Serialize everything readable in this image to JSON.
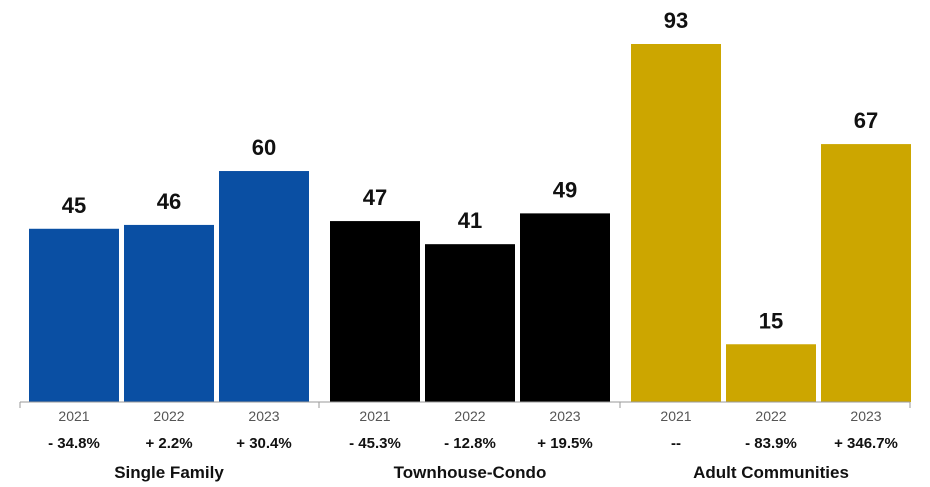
{
  "chart_data": {
    "type": "bar",
    "title": "",
    "xlabel": "",
    "ylabel": "",
    "ylim": [
      0,
      93
    ],
    "grid": false,
    "legend": "none",
    "groups": [
      {
        "name": "Single Family",
        "color": "#0a4fa3",
        "bars": [
          {
            "year": "2021",
            "value": 45,
            "label": "45",
            "change": "- 34.8%"
          },
          {
            "year": "2022",
            "value": 46,
            "label": "46",
            "change": "+ 2.2%"
          },
          {
            "year": "2023",
            "value": 60,
            "label": "60",
            "change": "+ 30.4%"
          }
        ]
      },
      {
        "name": "Townhouse-Condo",
        "color": "#000000",
        "bars": [
          {
            "year": "2021",
            "value": 47,
            "label": "47",
            "change": "- 45.3%"
          },
          {
            "year": "2022",
            "value": 41,
            "label": "41",
            "change": "- 12.8%"
          },
          {
            "year": "2023",
            "value": 49,
            "label": "49",
            "change": "+ 19.5%"
          }
        ]
      },
      {
        "name": "Adult Communities",
        "color": "#cca600",
        "bars": [
          {
            "year": "2021",
            "value": 93,
            "label": "93",
            "change": "--"
          },
          {
            "year": "2022",
            "value": 15,
            "label": "15",
            "change": "- 83.9%"
          },
          {
            "year": "2023",
            "value": 67,
            "label": "67",
            "change": "+ 346.7%"
          }
        ]
      }
    ]
  }
}
